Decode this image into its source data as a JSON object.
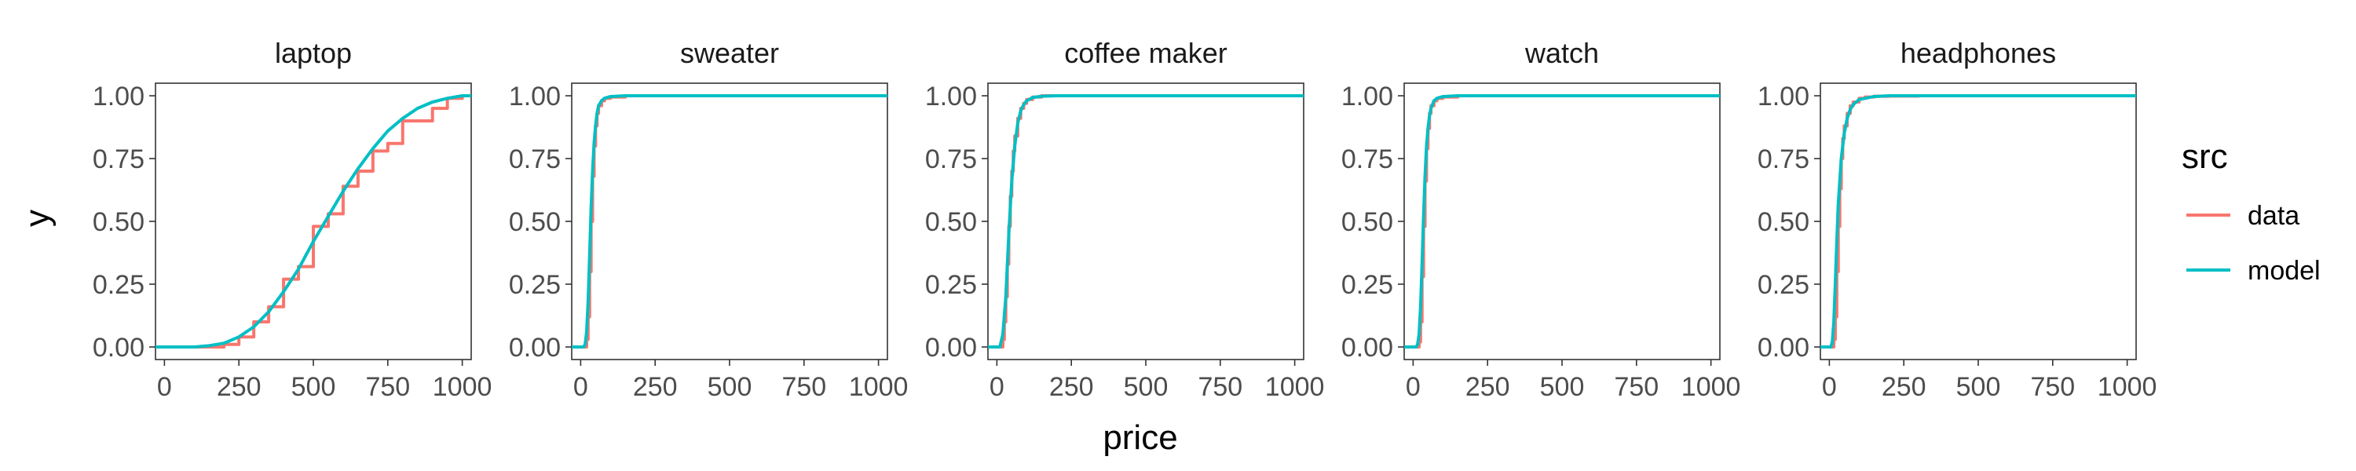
{
  "chart_data": {
    "type": "line",
    "subtype": "faceted ECDF vs model CDF",
    "xlabel": "price",
    "ylabel": "y",
    "xlim": [
      -30,
      1030
    ],
    "ylim": [
      -0.05,
      1.05
    ],
    "x_ticks": [
      0,
      250,
      500,
      750,
      1000
    ],
    "x_tick_labels": [
      "0",
      "250",
      "500",
      "750",
      "1000"
    ],
    "y_ticks": [
      0,
      0.25,
      0.5,
      0.75,
      1.0
    ],
    "y_tick_labels": [
      "0.00",
      "0.25",
      "0.50",
      "0.75",
      "1.00"
    ],
    "grid": false,
    "legend": {
      "title": "src",
      "position": "right",
      "entries": [
        {
          "label": "data",
          "color": "#F8766D"
        },
        {
          "label": "model",
          "color": "#00BFC4"
        }
      ]
    },
    "facets": [
      {
        "title": "laptop",
        "series": [
          {
            "name": "data",
            "color": "#F8766D",
            "step": true,
            "x": [
              -30,
              200,
              250,
              300,
              350,
              400,
              450,
              500,
              550,
              600,
              650,
              700,
              750,
              800,
              850,
              900,
              950,
              1000,
              1030
            ],
            "y": [
              0,
              0.01,
              0.04,
              0.1,
              0.16,
              0.27,
              0.32,
              0.48,
              0.53,
              0.64,
              0.7,
              0.78,
              0.81,
              0.9,
              0.9,
              0.95,
              0.99,
              1.0,
              1.0
            ]
          },
          {
            "name": "model",
            "color": "#00BFC4",
            "step": false,
            "x": [
              -30,
              100,
              150,
              200,
              250,
              300,
              350,
              400,
              450,
              500,
              550,
              600,
              650,
              700,
              750,
              800,
              850,
              900,
              950,
              1000,
              1030
            ],
            "y": [
              0,
              0,
              0.005,
              0.015,
              0.04,
              0.08,
              0.14,
              0.22,
              0.31,
              0.42,
              0.52,
              0.62,
              0.71,
              0.79,
              0.86,
              0.91,
              0.95,
              0.975,
              0.99,
              1.0,
              1.0
            ]
          }
        ]
      },
      {
        "title": "sweater",
        "series": [
          {
            "name": "data",
            "color": "#F8766D",
            "step": true,
            "x": [
              -30,
              15,
              20,
              25,
              30,
              35,
              40,
              45,
              50,
              55,
              60,
              70,
              80,
              100,
              150,
              1030
            ],
            "y": [
              0,
              0,
              0.03,
              0.12,
              0.3,
              0.5,
              0.68,
              0.8,
              0.88,
              0.93,
              0.96,
              0.98,
              0.99,
              0.995,
              1.0,
              1.0
            ]
          },
          {
            "name": "model",
            "color": "#00BFC4",
            "step": false,
            "x": [
              -30,
              10,
              15,
              20,
              25,
              30,
              35,
              40,
              45,
              50,
              55,
              60,
              70,
              80,
              100,
              150,
              1030
            ],
            "y": [
              0,
              0,
              0.01,
              0.06,
              0.18,
              0.36,
              0.55,
              0.7,
              0.81,
              0.88,
              0.93,
              0.96,
              0.98,
              0.99,
              0.997,
              1.0,
              1.0
            ]
          }
        ]
      },
      {
        "title": "coffee maker",
        "series": [
          {
            "name": "data",
            "color": "#F8766D",
            "step": true,
            "x": [
              -30,
              15,
              20,
              25,
              30,
              35,
              40,
              45,
              50,
              55,
              60,
              70,
              80,
              90,
              100,
              120,
              150,
              1030
            ],
            "y": [
              0,
              0,
              0.03,
              0.1,
              0.2,
              0.33,
              0.48,
              0.6,
              0.7,
              0.78,
              0.84,
              0.91,
              0.95,
              0.97,
              0.985,
              0.995,
              1.0,
              1.0
            ]
          },
          {
            "name": "model",
            "color": "#00BFC4",
            "step": false,
            "x": [
              -30,
              10,
              20,
              30,
              40,
              50,
              60,
              70,
              80,
              90,
              100,
              120,
              150,
              200,
              1030
            ],
            "y": [
              0,
              0,
              0.05,
              0.2,
              0.45,
              0.66,
              0.8,
              0.89,
              0.94,
              0.965,
              0.98,
              0.993,
              0.998,
              1.0,
              1.0
            ]
          }
        ]
      },
      {
        "title": "watch",
        "series": [
          {
            "name": "data",
            "color": "#F8766D",
            "step": true,
            "x": [
              -30,
              15,
              20,
              25,
              30,
              35,
              40,
              45,
              50,
              55,
              60,
              70,
              80,
              100,
              150,
              1030
            ],
            "y": [
              0,
              0,
              0.02,
              0.1,
              0.28,
              0.48,
              0.66,
              0.79,
              0.87,
              0.93,
              0.96,
              0.98,
              0.99,
              0.995,
              1.0,
              1.0
            ]
          },
          {
            "name": "model",
            "color": "#00BFC4",
            "step": false,
            "x": [
              -30,
              10,
              15,
              20,
              25,
              30,
              35,
              40,
              45,
              50,
              55,
              60,
              70,
              80,
              100,
              150,
              1030
            ],
            "y": [
              0,
              0,
              0.01,
              0.05,
              0.16,
              0.33,
              0.52,
              0.68,
              0.8,
              0.87,
              0.92,
              0.95,
              0.98,
              0.99,
              0.997,
              1.0,
              1.0
            ]
          }
        ]
      },
      {
        "title": "headphones",
        "series": [
          {
            "name": "data",
            "color": "#F8766D",
            "step": true,
            "x": [
              -30,
              10,
              15,
              20,
              25,
              30,
              35,
              40,
              45,
              50,
              60,
              70,
              80,
              100,
              120,
              150,
              200,
              300
            ],
            "y": [
              0,
              0,
              0.03,
              0.12,
              0.3,
              0.48,
              0.63,
              0.75,
              0.83,
              0.88,
              0.93,
              0.96,
              0.975,
              0.99,
              0.995,
              0.998,
              0.999,
              1.0
            ]
          },
          {
            "name": "model",
            "color": "#00BFC4",
            "step": false,
            "x": [
              -30,
              5,
              10,
              15,
              20,
              25,
              30,
              40,
              50,
              60,
              70,
              80,
              100,
              150,
              200,
              1030
            ],
            "y": [
              0,
              0,
              0.02,
              0.1,
              0.25,
              0.42,
              0.57,
              0.75,
              0.85,
              0.91,
              0.945,
              0.965,
              0.985,
              0.997,
              1.0,
              1.0
            ]
          }
        ]
      }
    ]
  }
}
